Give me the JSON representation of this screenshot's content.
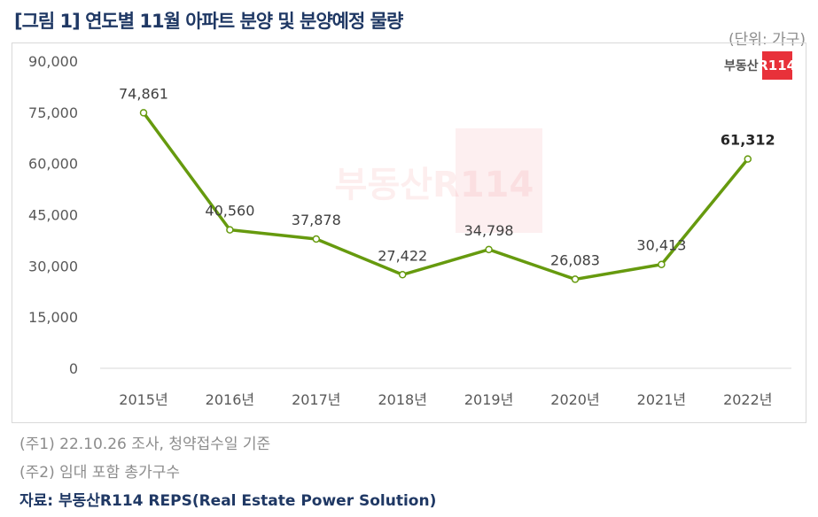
{
  "title": "[그림 1] 연도별 11월 아파트 분양 및 분양예정 물량",
  "unit": "(단위: 가구)",
  "logo": {
    "text": "부동산",
    "mark": "R114"
  },
  "watermark": "부동산R114",
  "notes": [
    "(주1) 22.10.26 조사, 청약접수일 기준",
    "(주2) 임대 포함 총가구수"
  ],
  "source": "자료: 부동산R114 REPS(Real Estate Power Solution)",
  "chart_data": {
    "type": "line",
    "categories": [
      "2015년",
      "2016년",
      "2017년",
      "2018년",
      "2019년",
      "2020년",
      "2021년",
      "2022년"
    ],
    "values": [
      74861,
      40560,
      37878,
      27422,
      34798,
      26083,
      30413,
      61312
    ],
    "data_labels": [
      "74,861",
      "40,560",
      "37,878",
      "27,422",
      "34,798",
      "26,083",
      "30,413",
      "61,312"
    ],
    "ylim": [
      0,
      90000
    ],
    "yticks": [
      "0",
      "15,000",
      "30,000",
      "45,000",
      "60,000",
      "75,000",
      "90,000"
    ],
    "ytick_values": [
      0,
      15000,
      30000,
      45000,
      60000,
      75000,
      90000
    ],
    "grid": false,
    "line_color": "#669a0e",
    "highlight_last": true
  }
}
